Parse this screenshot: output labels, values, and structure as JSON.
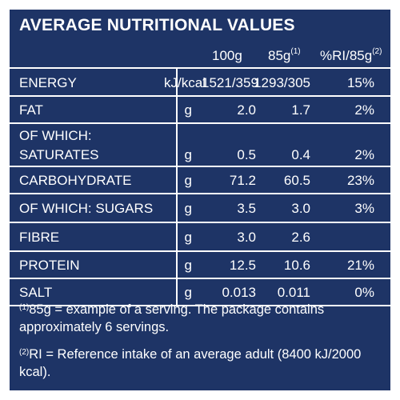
{
  "title": "AVERAGE NUTRITIONAL VALUES",
  "headers": {
    "col100": "100g",
    "col85": "85g",
    "col85_sup": "(1)",
    "colri": "%RI/85g",
    "colri_sup": "(2)"
  },
  "rows": [
    {
      "label": "ENERGY",
      "label2": "",
      "unit": "kJ/kcal",
      "v100": "1521/359",
      "v85": "1293/305",
      "ri": "15%"
    },
    {
      "label": "FAT",
      "label2": "",
      "unit": "g",
      "v100": "2.0",
      "v85": "1.7",
      "ri": "2%"
    },
    {
      "label": "OF WHICH:",
      "label2": "SATURATES",
      "unit": "g",
      "v100": "0.5",
      "v85": "0.4",
      "ri": "2%"
    },
    {
      "label": "CARBOHYDRATE",
      "label2": "",
      "unit": "g",
      "v100": "71.2",
      "v85": "60.5",
      "ri": "23%"
    },
    {
      "label": "OF WHICH: SUGARS",
      "label2": "",
      "unit": "g",
      "v100": "3.5",
      "v85": "3.0",
      "ri": "3%"
    },
    {
      "label": "FIBRE",
      "label2": "",
      "unit": "g",
      "v100": "3.0",
      "v85": "2.6",
      "ri": ""
    },
    {
      "label": "PROTEIN",
      "label2": "",
      "unit": "g",
      "v100": "12.5",
      "v85": "10.6",
      "ri": "21%"
    },
    {
      "label": "SALT",
      "label2": "",
      "unit": "g",
      "v100": "0.013",
      "v85": "0.011",
      "ri": "0%"
    }
  ],
  "footnotes": {
    "n1_sup": "(1)",
    "n1": "85g = example of a serving. The package contains approximately 6 servings.",
    "n2_sup": "(2)",
    "n2": "RI = Reference intake of an average adult (8400 kJ/2000 kcal)."
  },
  "colors": {
    "background": "#1e3466",
    "text": "#ffffff"
  }
}
